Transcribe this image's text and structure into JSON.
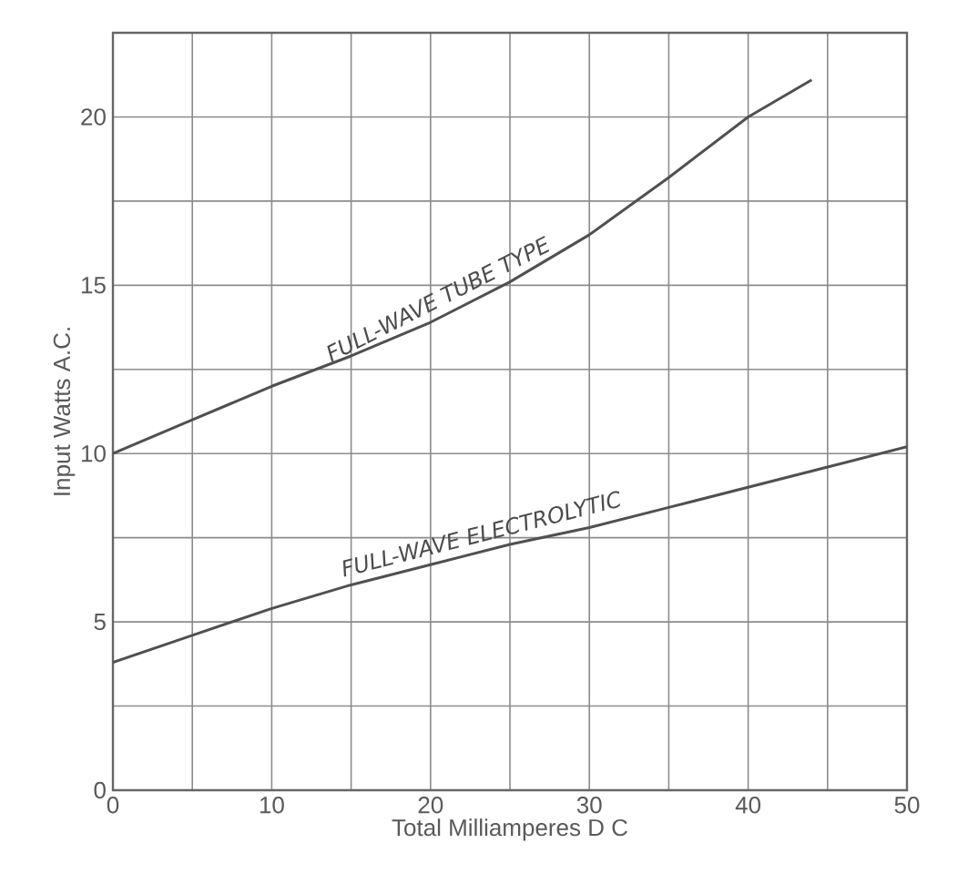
{
  "chart_data": {
    "type": "line",
    "xlabel": "Total Milliamperes D C",
    "ylabel": "Input Watts A.C.",
    "x": [
      0,
      5,
      10,
      15,
      20,
      25,
      30,
      35,
      40,
      44
    ],
    "series": [
      {
        "name": "FULL-WAVE TUBE TYPE",
        "color": "#505050",
        "values": [
          10,
          11.0,
          12.0,
          12.9,
          13.9,
          15.1,
          16.5,
          18.2,
          20.0,
          21.1
        ]
      },
      {
        "name": "FULL-WAVE ELECTROLYTIC",
        "color": "#505050",
        "x": [
          0,
          5,
          10,
          15,
          20,
          25,
          30,
          35,
          40,
          45,
          50
        ],
        "values": [
          3.8,
          4.6,
          5.4,
          6.1,
          6.7,
          7.3,
          7.8,
          8.4,
          9.0,
          9.6,
          10.2
        ]
      }
    ],
    "xlim": [
      0,
      50
    ],
    "ylim": [
      0,
      22.5
    ],
    "xticks": [
      0,
      {
        "value": 5,
        "label": null
      },
      10,
      {
        "value": 15,
        "label": null
      },
      20,
      {
        "value": 25,
        "label": null
      },
      30,
      {
        "value": 35,
        "label": null
      },
      40,
      {
        "value": 45,
        "label": null
      },
      50
    ],
    "yticks": [
      0,
      {
        "value": 2.5,
        "label": null
      },
      5,
      {
        "value": 7.5,
        "label": null
      },
      10,
      {
        "value": 12.5,
        "label": null
      },
      15,
      {
        "value": 17.5,
        "label": null
      },
      20
    ],
    "grid": true,
    "marker": "none",
    "line_style": "solid",
    "legend": false
  }
}
